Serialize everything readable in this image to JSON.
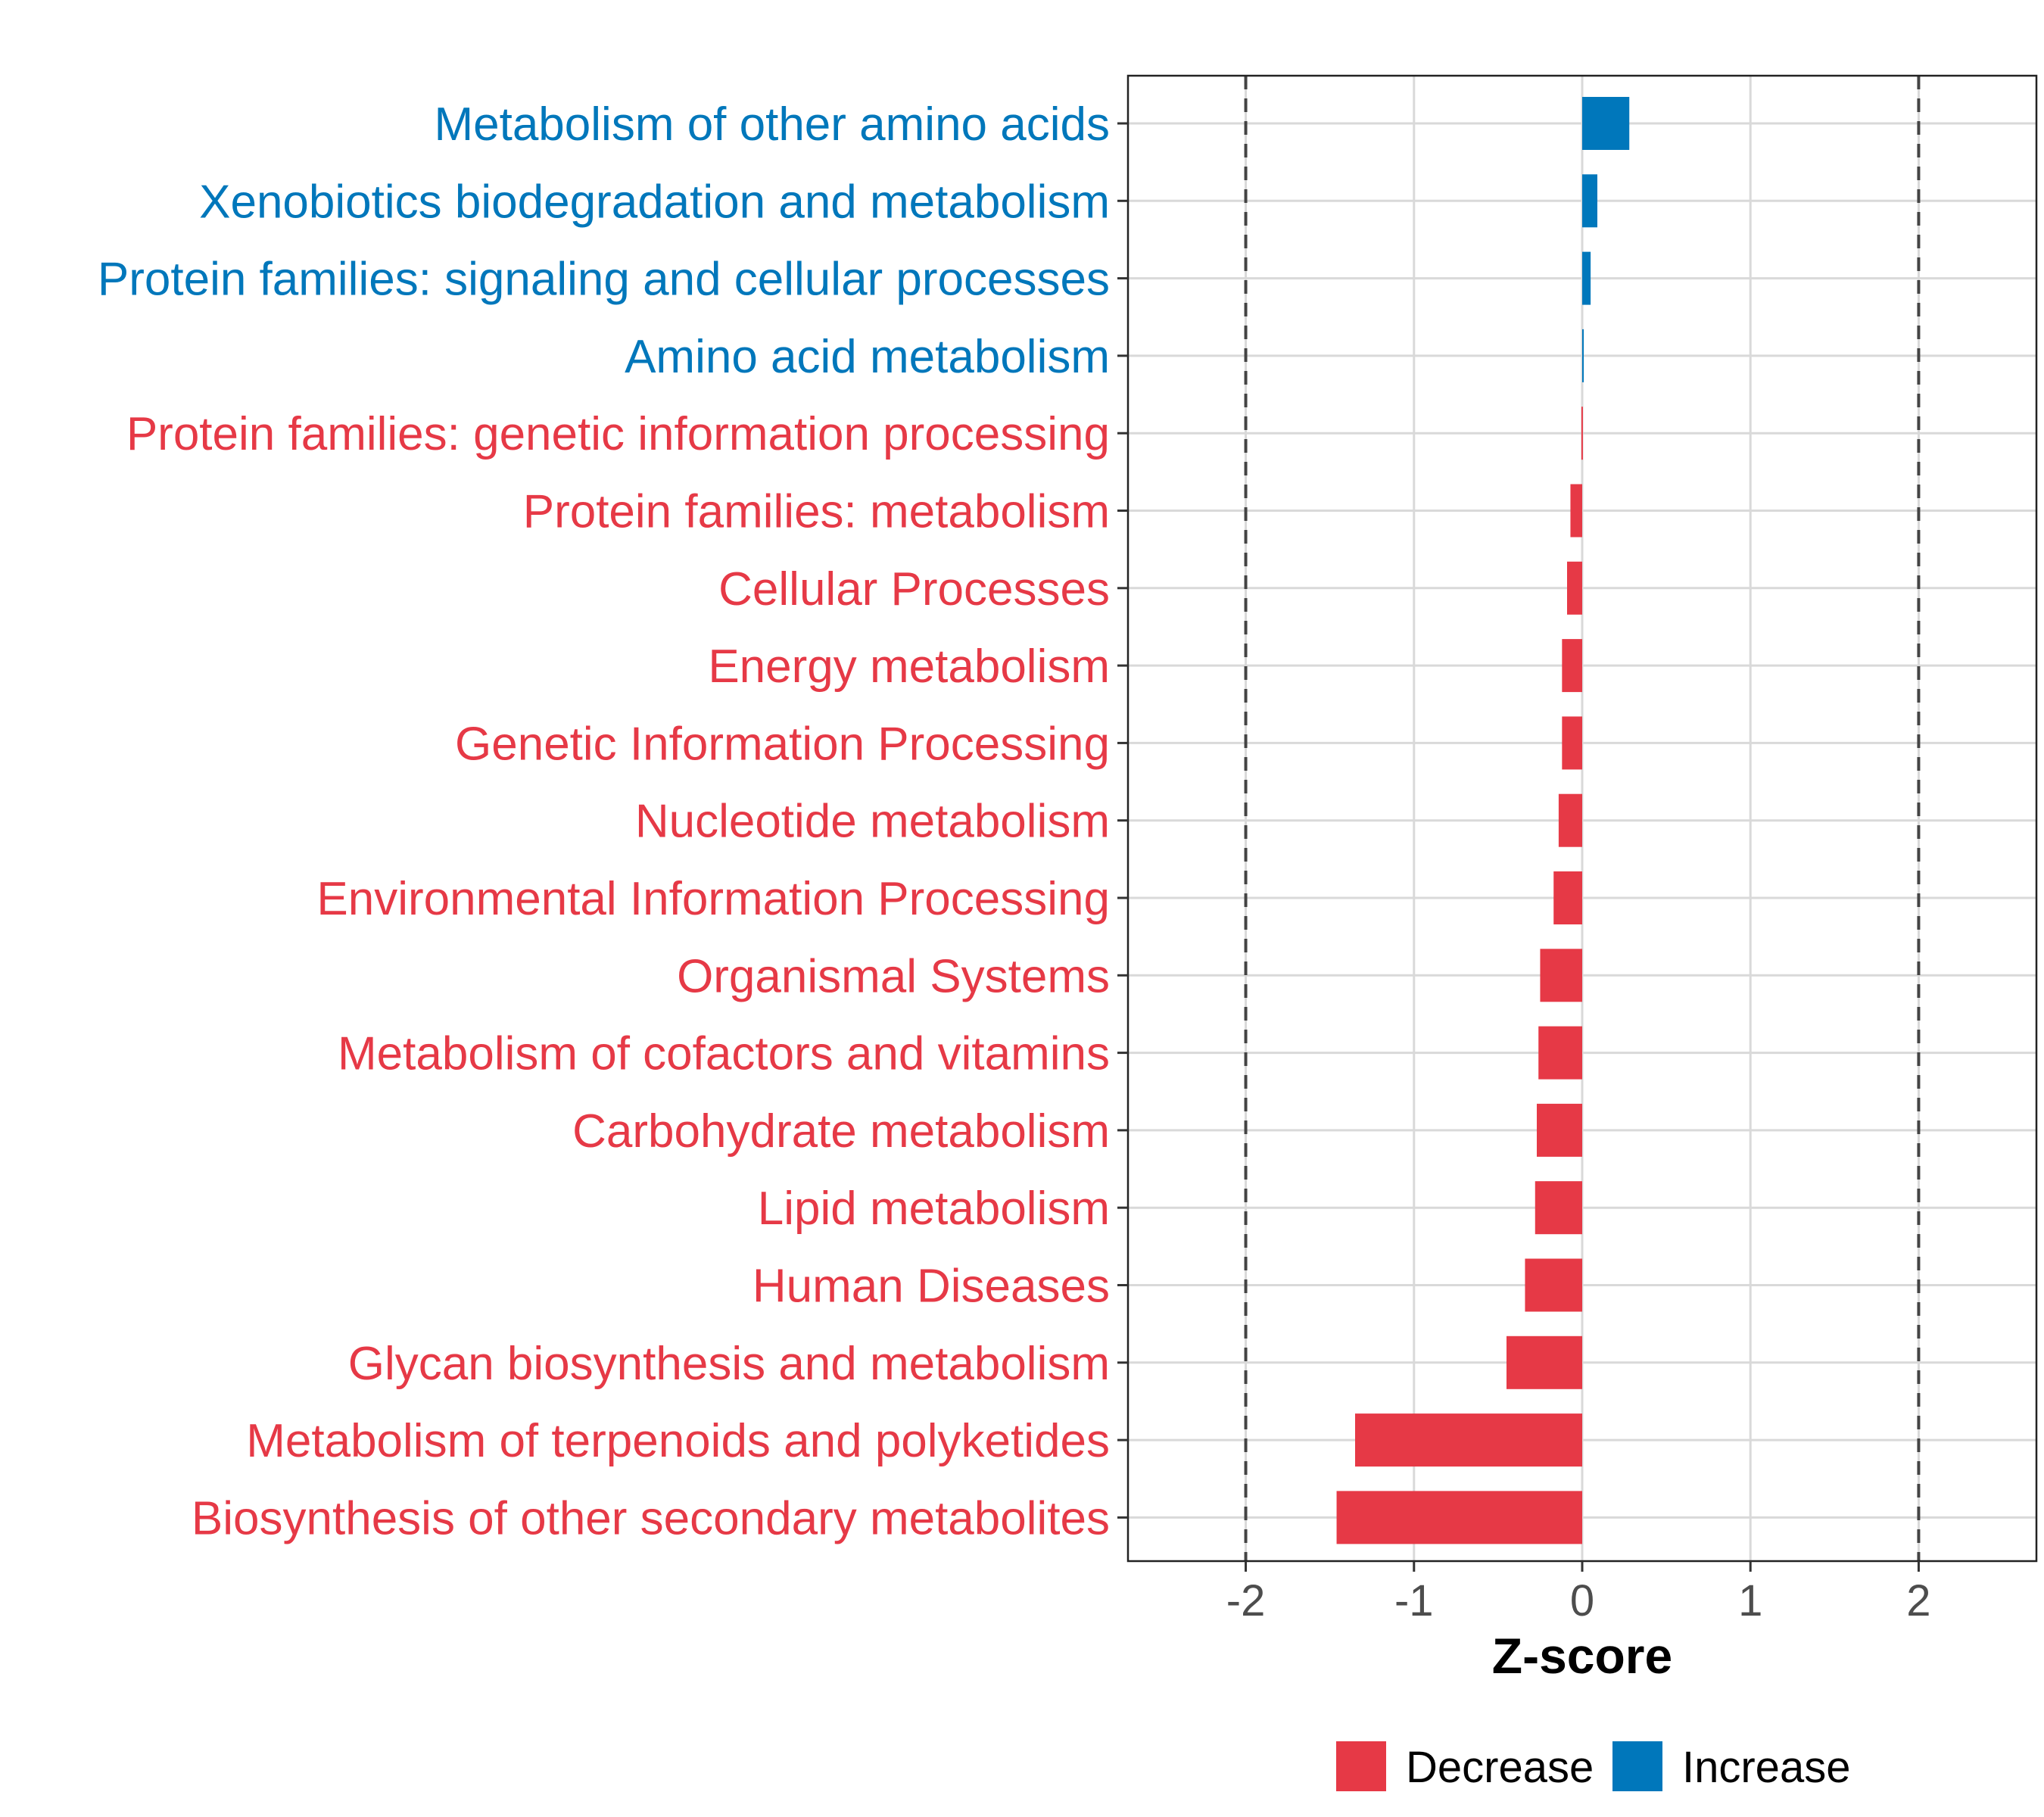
{
  "colors": {
    "decrease": "#E63946",
    "increase": "#0077BB",
    "grid": "#D9D9D9",
    "axis_text": "#4D4D4D",
    "refline": "#444444"
  },
  "chart_data": {
    "type": "bar",
    "orientation": "horizontal",
    "xlabel": "Z-score",
    "xlim": [
      -2.7,
      2.7
    ],
    "xticks": [
      -2,
      -1,
      0,
      1,
      2
    ],
    "xtick_labels": [
      "-2",
      "-1",
      "0",
      "1",
      "2"
    ],
    "reference_lines": [
      -2,
      2
    ],
    "grid": true,
    "legend": {
      "position": "bottom",
      "items": [
        {
          "label": "Decrease",
          "color_key": "decrease"
        },
        {
          "label": "Increase",
          "color_key": "increase"
        }
      ]
    },
    "categories": [
      "Metabolism of other amino acids",
      "Xenobiotics biodegradation and metabolism",
      "Protein families: signaling and cellular processes",
      "Amino acid metabolism",
      "Protein families: genetic information processing",
      "Protein families: metabolism",
      "Cellular Processes",
      "Energy metabolism",
      "Genetic Information Processing",
      "Nucleotide metabolism",
      "Environmental Information Processing",
      "Organismal Systems",
      "Metabolism of cofactors and vitamins",
      "Carbohydrate metabolism",
      "Lipid metabolism",
      "Human Diseases",
      "Glycan biosynthesis and metabolism",
      "Metabolism of terpenoids and polyketides",
      "Biosynthesis of other secondary metabolites"
    ],
    "values": [
      0.28,
      0.09,
      0.05,
      0.005,
      -0.005,
      -0.07,
      -0.09,
      -0.12,
      -0.12,
      -0.14,
      -0.17,
      -0.25,
      -0.26,
      -0.27,
      -0.28,
      -0.34,
      -0.45,
      -1.35,
      -1.46
    ],
    "direction": [
      "Increase",
      "Increase",
      "Increase",
      "Increase",
      "Decrease",
      "Decrease",
      "Decrease",
      "Decrease",
      "Decrease",
      "Decrease",
      "Decrease",
      "Decrease",
      "Decrease",
      "Decrease",
      "Decrease",
      "Decrease",
      "Decrease",
      "Decrease",
      "Decrease"
    ]
  }
}
